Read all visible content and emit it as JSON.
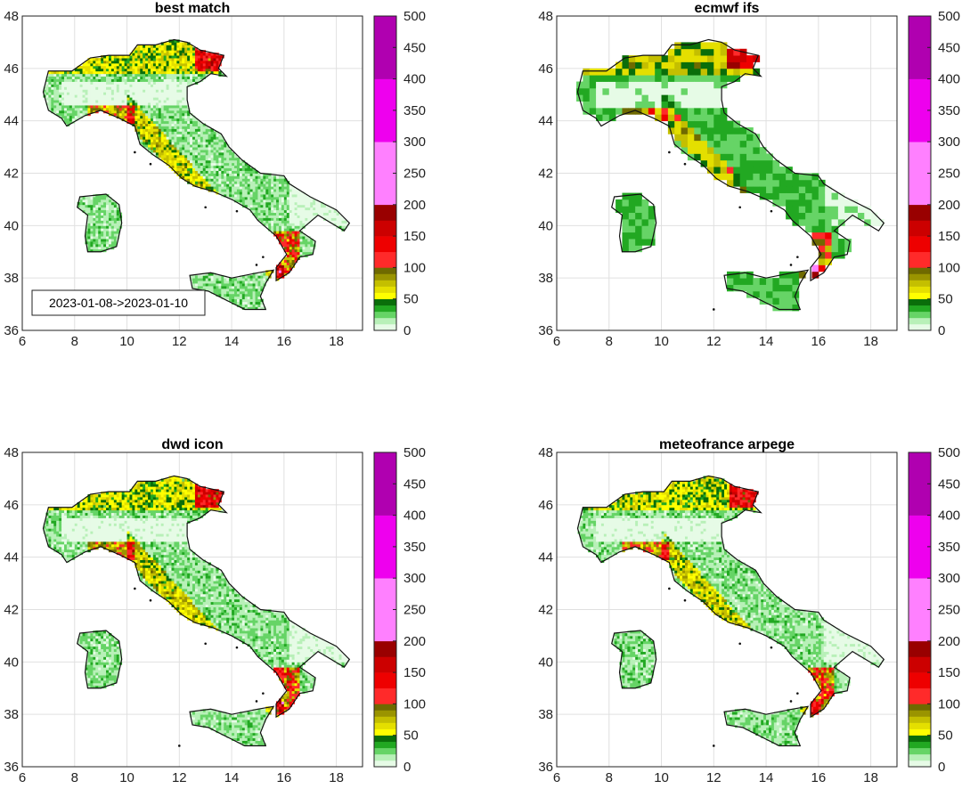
{
  "figure": {
    "date_range_label": "2023-01-08->2023-01-10",
    "panels": [
      {
        "id": "best-match",
        "title": "best match",
        "has_date_label": true
      },
      {
        "id": "ecmwf-ifs",
        "title": "ecmwf ifs",
        "has_date_label": false
      },
      {
        "id": "dwd-icon",
        "title": "dwd icon",
        "has_date_label": false
      },
      {
        "id": "meteofrance-arpege",
        "title": "meteofrance arpege",
        "has_date_label": false
      }
    ],
    "x_ticks": [
      "6",
      "8",
      "10",
      "12",
      "14",
      "16",
      "18"
    ],
    "y_ticks": [
      "36",
      "38",
      "40",
      "42",
      "44",
      "46",
      "48"
    ],
    "colorbar": {
      "ticks": [
        "0",
        "50",
        "100",
        "150",
        "200",
        "250",
        "300",
        "350",
        "400",
        "450",
        "500"
      ],
      "bands": [
        {
          "from": 0,
          "to": 10,
          "color": "#e6fbe6"
        },
        {
          "from": 10,
          "to": 20,
          "color": "#b8f0b8"
        },
        {
          "from": 20,
          "to": 30,
          "color": "#66d466"
        },
        {
          "from": 30,
          "to": 40,
          "color": "#22a822"
        },
        {
          "from": 40,
          "to": 50,
          "color": "#0a6e0a"
        },
        {
          "from": 50,
          "to": 60,
          "color": "#ffff00"
        },
        {
          "from": 60,
          "to": 70,
          "color": "#e4df00"
        },
        {
          "from": 70,
          "to": 80,
          "color": "#c4bf00"
        },
        {
          "from": 80,
          "to": 90,
          "color": "#9a9400"
        },
        {
          "from": 90,
          "to": 100,
          "color": "#6f6a00"
        },
        {
          "from": 100,
          "to": 125,
          "color": "#ff2a2a"
        },
        {
          "from": 125,
          "to": 150,
          "color": "#ee0000"
        },
        {
          "from": 150,
          "to": 175,
          "color": "#cc0000"
        },
        {
          "from": 175,
          "to": 200,
          "color": "#990000"
        },
        {
          "from": 200,
          "to": 300,
          "color": "#ff80ff"
        },
        {
          "from": 300,
          "to": 400,
          "color": "#ee00ee"
        },
        {
          "from": 400,
          "to": 500,
          "color": "#b000b0"
        }
      ]
    }
  },
  "chart_data": [
    {
      "type": "heatmap",
      "title": "best match",
      "xlim": [
        6,
        19
      ],
      "ylim": [
        36,
        48
      ],
      "grid": true,
      "colorbar_range": [
        0,
        500
      ],
      "annotation": "2023-01-08->2023-01-10"
    },
    {
      "type": "heatmap",
      "title": "ecmwf ifs",
      "xlim": [
        6,
        19
      ],
      "ylim": [
        36,
        48
      ],
      "grid": true,
      "colorbar_range": [
        0,
        500
      ]
    },
    {
      "type": "heatmap",
      "title": "dwd icon",
      "xlim": [
        6,
        19
      ],
      "ylim": [
        36,
        48
      ],
      "grid": true,
      "colorbar_range": [
        0,
        500
      ]
    },
    {
      "type": "heatmap",
      "title": "meteofrance arpege",
      "xlim": [
        6,
        19
      ],
      "ylim": [
        36,
        48
      ],
      "grid": true,
      "colorbar_range": [
        0,
        500
      ]
    }
  ]
}
